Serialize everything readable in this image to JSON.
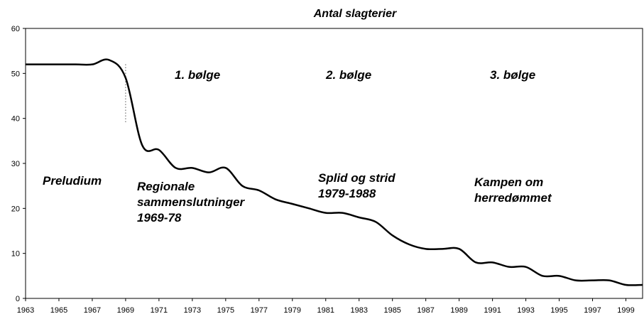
{
  "chart_data": {
    "type": "line",
    "title": "Antal slagterier",
    "x": [
      1963,
      1964,
      1965,
      1966,
      1967,
      1968,
      1969,
      1970,
      1971,
      1972,
      1973,
      1974,
      1975,
      1976,
      1977,
      1978,
      1979,
      1980,
      1981,
      1982,
      1983,
      1984,
      1985,
      1986,
      1987,
      1988,
      1989,
      1990,
      1991,
      1992,
      1993,
      1994,
      1995,
      1996,
      1997,
      1998,
      1999,
      2000
    ],
    "series": [
      {
        "name": "Antal slagterier",
        "color": "#000000",
        "values": [
          52,
          52,
          52,
          52,
          52,
          53,
          49,
          34,
          33,
          29,
          29,
          28,
          29,
          25,
          24,
          22,
          21,
          20,
          19,
          19,
          18,
          17,
          14,
          12,
          11,
          11,
          11,
          8,
          8,
          7,
          7,
          5,
          5,
          4,
          4,
          4,
          3,
          3
        ]
      }
    ],
    "xlim": [
      1963,
      2000
    ],
    "xticks": [
      1963,
      1965,
      1967,
      1969,
      1971,
      1973,
      1975,
      1977,
      1979,
      1981,
      1983,
      1985,
      1987,
      1989,
      1991,
      1993,
      1995,
      1997,
      1999
    ],
    "ylim": [
      0,
      60
    ],
    "yticks": [
      0,
      10,
      20,
      30,
      40,
      50,
      60
    ],
    "grid": false,
    "annotations": [
      {
        "lines": [
          "Preludium"
        ]
      },
      {
        "lines": [
          "1. bølge"
        ]
      },
      {
        "lines": [
          "2. bølge"
        ]
      },
      {
        "lines": [
          "3. bølge"
        ]
      },
      {
        "lines": [
          "Regionale",
          "sammenslutninger",
          "1969-78"
        ]
      },
      {
        "lines": [
          "Splid og strid",
          "1979-1988"
        ]
      },
      {
        "lines": [
          "Kampen om",
          "herredømmet"
        ]
      }
    ]
  }
}
